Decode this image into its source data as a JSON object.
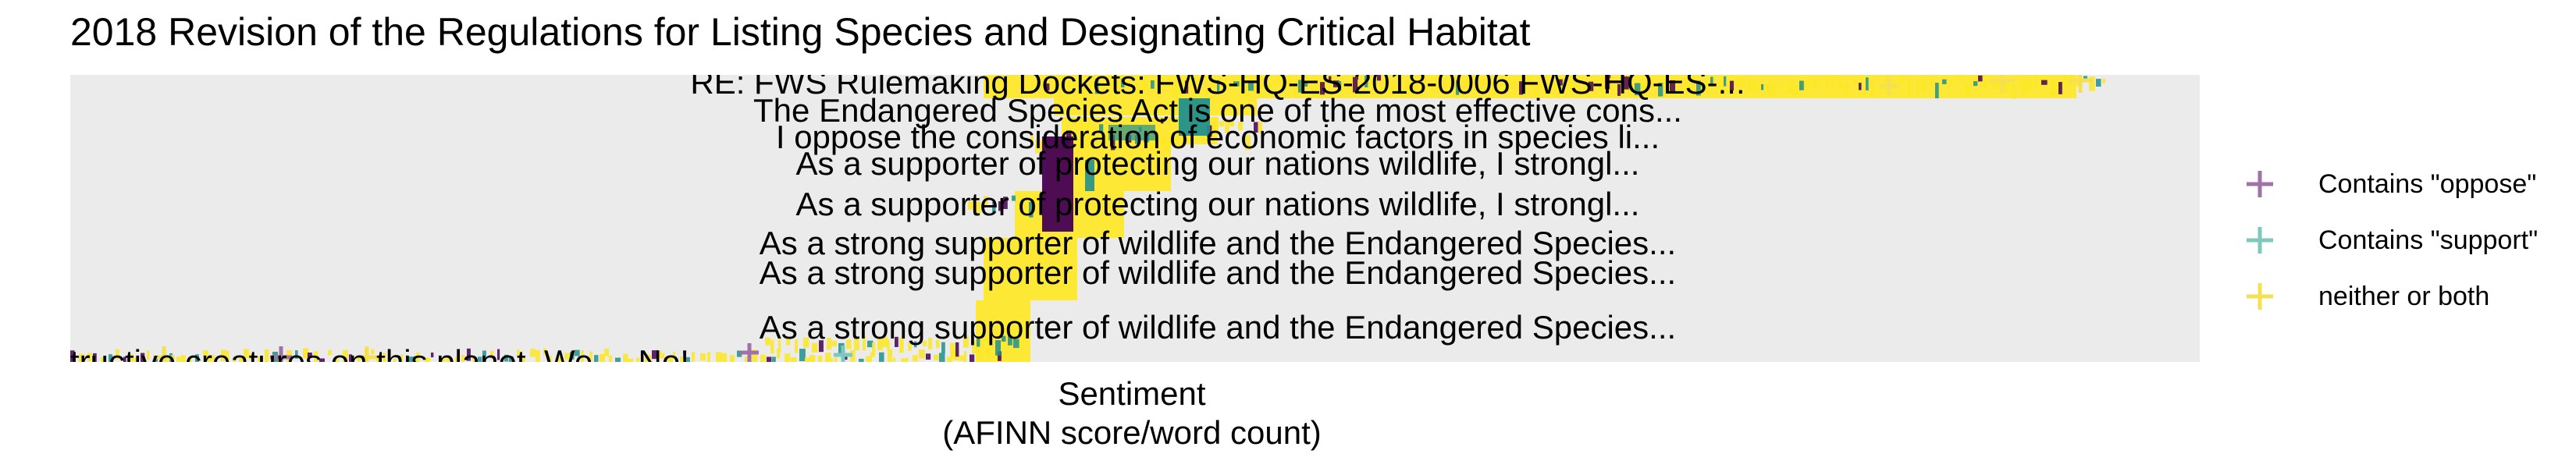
{
  "chart_data": {
    "type": "scatter",
    "title": "2018 Revision of the Regulations for Listing Species and Designating Critical Habitat",
    "xlabel": "Sentiment",
    "xlabel_sub": "(AFINN score/word count)",
    "ylabel": "",
    "grid": false,
    "legend_position": "right",
    "legend": [
      {
        "key": "oppose",
        "label": "Contains \"oppose\"",
        "color": "#a172a8"
      },
      {
        "key": "support",
        "label": "Contains \"support\"",
        "color": "#7ec8bd"
      },
      {
        "key": "neither",
        "label": "neither or both",
        "color": "#f5e14f"
      }
    ],
    "annotations": [
      "RE: FWS Rulemaking Dockets: FWS-HQ-ES-2018-0006  FWS-HQ-ES-...",
      "The Endangered Species Act is one of the most effective cons...",
      "I oppose the consideration of economic factors in species li...",
      "As a supporter of protecting our nations wildlife, I strongl...",
      "As a supporter of protecting our nations wildlife, I strongl...",
      "As a strong supporter of wildlife and the Endangered Species...",
      "As a strong supporter of wildlife and the Endangered Species...",
      "As a strong supporter of wildlife and the Endangered Species...",
      "tructive creatures on this planet.  We ... No!..."
    ],
    "density_colors": [
      "#440154",
      "#21908c",
      "#fde725"
    ]
  }
}
